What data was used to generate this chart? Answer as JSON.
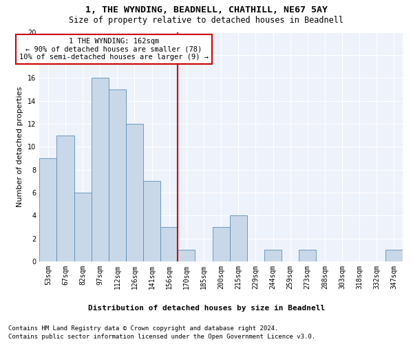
{
  "title": "1, THE WYNDING, BEADNELL, CHATHILL, NE67 5AY",
  "subtitle": "Size of property relative to detached houses in Beadnell",
  "xlabel": "Distribution of detached houses by size in Beadnell",
  "ylabel": "Number of detached properties",
  "bar_color": "#c8d8e8",
  "bar_edge_color": "#5b8db8",
  "background_color": "#eef2fb",
  "grid_color": "#ffffff",
  "bin_labels": [
    "53sqm",
    "67sqm",
    "82sqm",
    "97sqm",
    "112sqm",
    "126sqm",
    "141sqm",
    "156sqm",
    "170sqm",
    "185sqm",
    "200sqm",
    "215sqm",
    "229sqm",
    "244sqm",
    "259sqm",
    "273sqm",
    "288sqm",
    "303sqm",
    "318sqm",
    "332sqm",
    "347sqm"
  ],
  "bar_values": [
    9,
    11,
    6,
    16,
    15,
    12,
    7,
    3,
    1,
    0,
    3,
    4,
    0,
    1,
    0,
    1,
    0,
    0,
    0,
    0,
    1
  ],
  "vline_color": "#cc0000",
  "annotation_text": "1 THE WYNDING: 162sqm\n← 90% of detached houses are smaller (78)\n10% of semi-detached houses are larger (9) →",
  "annotation_box_color": "#ffffff",
  "annotation_box_edge": "#cc0000",
  "ylim": [
    0,
    20
  ],
  "yticks": [
    0,
    2,
    4,
    6,
    8,
    10,
    12,
    14,
    16,
    18,
    20
  ],
  "footer1": "Contains HM Land Registry data © Crown copyright and database right 2024.",
  "footer2": "Contains public sector information licensed under the Open Government Licence v3.0.",
  "title_fontsize": 9.5,
  "subtitle_fontsize": 8.5,
  "xlabel_fontsize": 8,
  "ylabel_fontsize": 8,
  "tick_fontsize": 7,
  "annotation_fontsize": 7.5,
  "footer_fontsize": 6.5
}
